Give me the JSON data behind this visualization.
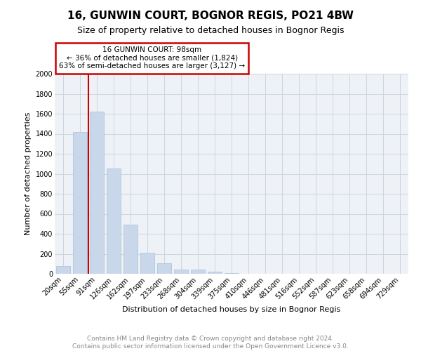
{
  "title": "16, GUNWIN COURT, BOGNOR REGIS, PO21 4BW",
  "subtitle": "Size of property relative to detached houses in Bognor Regis",
  "xlabel": "Distribution of detached houses by size in Bognor Regis",
  "ylabel": "Number of detached properties",
  "footer_line1": "Contains HM Land Registry data © Crown copyright and database right 2024.",
  "footer_line2": "Contains public sector information licensed under the Open Government Licence v3.0.",
  "categories": [
    "20sqm",
    "55sqm",
    "91sqm",
    "126sqm",
    "162sqm",
    "197sqm",
    "233sqm",
    "268sqm",
    "304sqm",
    "339sqm",
    "375sqm",
    "410sqm",
    "446sqm",
    "481sqm",
    "516sqm",
    "552sqm",
    "587sqm",
    "623sqm",
    "658sqm",
    "694sqm",
    "729sqm"
  ],
  "values": [
    80,
    1420,
    1620,
    1050,
    490,
    210,
    105,
    45,
    40,
    20,
    10,
    0,
    0,
    0,
    0,
    0,
    0,
    0,
    0,
    0,
    0
  ],
  "bar_color": "#c8d8ea",
  "bar_edge_color": "#a8c0d8",
  "vline_index": 1.5,
  "vline_color": "#cc0000",
  "ann_line1": "16 GUNWIN COURT: 98sqm",
  "ann_line2": "← 36% of detached houses are smaller (1,824)",
  "ann_line3": "63% of semi-detached houses are larger (3,127) →",
  "ann_box_color": "#cc0000",
  "ylim_max": 2000,
  "yticks": [
    0,
    200,
    400,
    600,
    800,
    1000,
    1200,
    1400,
    1600,
    1800,
    2000
  ],
  "grid_color": "#ccd5e0",
  "bg_color": "#eef2f7",
  "title_fs": 11,
  "subtitle_fs": 9,
  "ylabel_fs": 8,
  "xlabel_fs": 8,
  "tick_fs": 7,
  "ann_fs": 7.5,
  "footer_fs": 6.5
}
